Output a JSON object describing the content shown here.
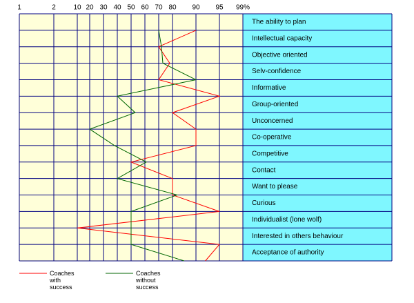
{
  "chart_data": {
    "type": "line",
    "categories": [
      "The ability to plan",
      "Intellectual capacity",
      "Objective oriented",
      "Selv-confidence",
      "Informative",
      "Group-oriented",
      "Unconcerned",
      "Co-operative",
      "Competitive",
      "Contact",
      "Want to please",
      "Curious",
      "Individualist (lone wolf)",
      "Interested in others behaviour",
      "Acceptance of authority"
    ],
    "series": [
      {
        "name": "Coaches with success",
        "color": "#ff0000",
        "values": [
          90,
          70,
          78,
          70,
          95,
          80,
          90,
          90,
          50,
          80,
          80,
          95,
          10,
          95,
          92
        ]
      },
      {
        "name": "Coaches without success",
        "color": "#006600",
        "values": [
          70,
          72,
          73,
          90,
          40,
          53,
          20,
          38,
          61,
          40,
          82,
          50,
          50,
          50,
          85
        ]
      }
    ],
    "xlim": [
      1,
      99
    ],
    "xticks": [
      1,
      2,
      10,
      20,
      30,
      40,
      50,
      60,
      70,
      80,
      90,
      95,
      {
        "value": 99,
        "label": "99%"
      }
    ],
    "grid": true
  }
}
